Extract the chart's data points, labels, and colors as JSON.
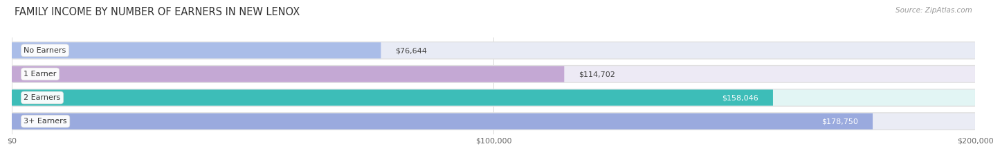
{
  "title": "FAMILY INCOME BY NUMBER OF EARNERS IN NEW LENOX",
  "source": "Source: ZipAtlas.com",
  "categories": [
    "No Earners",
    "1 Earner",
    "2 Earners",
    "3+ Earners"
  ],
  "values": [
    76644,
    114702,
    158046,
    178750
  ],
  "labels": [
    "$76,644",
    "$114,702",
    "$158,046",
    "$178,750"
  ],
  "bar_colors": [
    "#aabde8",
    "#c4a8d4",
    "#3dbdb8",
    "#9aaade"
  ],
  "bar_bg_colors": [
    "#e8ebf5",
    "#edeaf5",
    "#e2f5f4",
    "#eaecf5"
  ],
  "row_bg_color": "#f0f0f0",
  "xlim": [
    0,
    200000
  ],
  "xticks": [
    0,
    100000,
    200000
  ],
  "xticklabels": [
    "$0",
    "$100,000",
    "$200,000"
  ],
  "title_fontsize": 10.5,
  "source_fontsize": 7.5,
  "label_fontsize": 8,
  "tick_fontsize": 8,
  "background_color": "#ffffff",
  "label_inside_threshold": 140000,
  "label_text_color_inside": "#ffffff",
  "label_text_color_outside": "#444444"
}
